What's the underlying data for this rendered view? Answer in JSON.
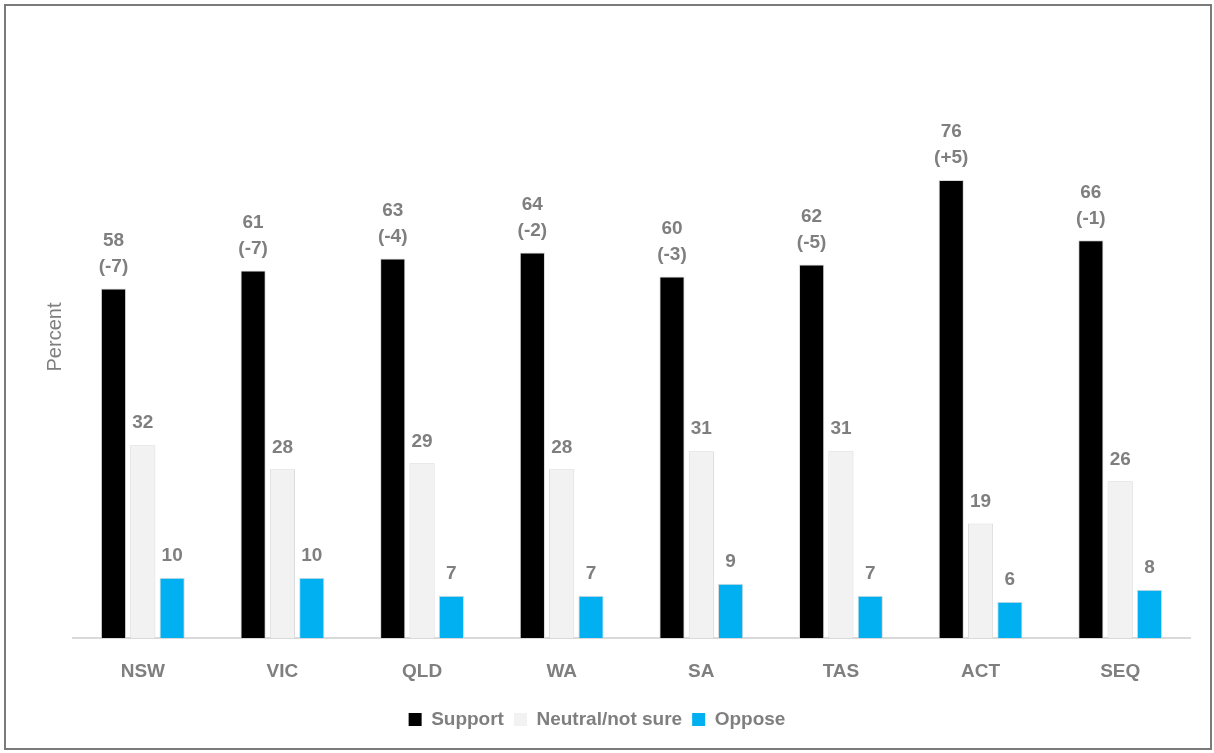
{
  "chart_data": {
    "type": "bar",
    "ylabel": "Percent",
    "categories": [
      "NSW",
      "VIC",
      "QLD",
      "WA",
      "SA",
      "TAS",
      "ACT",
      "SEQ"
    ],
    "series": [
      {
        "name": "Support",
        "color": "#000000",
        "values": [
          58,
          61,
          63,
          64,
          60,
          62,
          76,
          66
        ],
        "value_labels": [
          "58\n(-7)",
          "61\n(-7)",
          "63\n(-4)",
          "64\n(-2)",
          "60\n(-3)",
          "62\n(-5)",
          "76\n(+5)",
          "66\n(-1)"
        ]
      },
      {
        "name": "Neutral/not sure",
        "color": "#f2f2f2",
        "values": [
          32,
          28,
          29,
          28,
          31,
          31,
          19,
          26
        ],
        "value_labels": [
          "32",
          "28",
          "29",
          "28",
          "31",
          "31",
          "19",
          "26"
        ]
      },
      {
        "name": "Oppose",
        "color": "#00b0f0",
        "values": [
          10,
          10,
          7,
          7,
          9,
          7,
          6,
          8
        ],
        "value_labels": [
          "10",
          "10",
          "7",
          "7",
          "9",
          "7",
          "6",
          "8"
        ]
      }
    ],
    "tick_labels": "x",
    "grid": false,
    "legend": "bottom"
  }
}
